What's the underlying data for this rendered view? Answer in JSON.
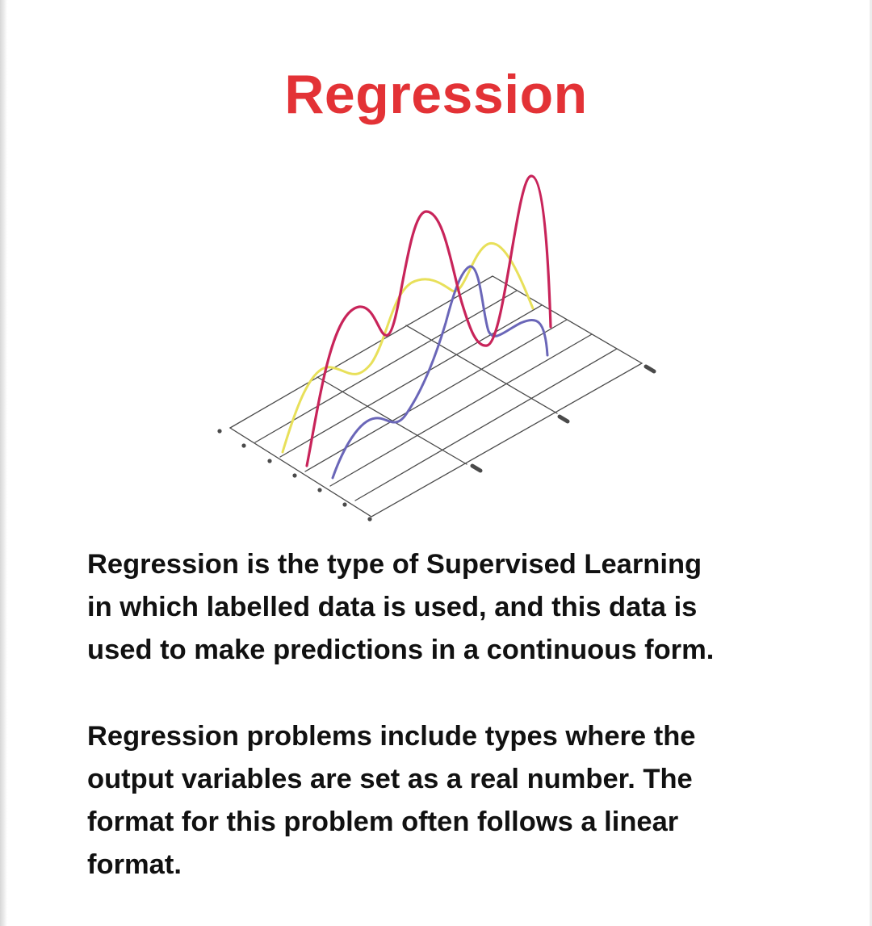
{
  "title": "Regression",
  "paragraphs": [
    {
      "lines": [
        "Regression is the type of Supervised Learning",
        "in which labelled data is used, and this data is",
        "used to make predictions in a continuous form."
      ]
    },
    {
      "lines": [
        "Regression problems include types where the",
        "output variables are set as a real number. The",
        "format for this problem often follows a linear",
        "format."
      ]
    }
  ],
  "illustration": {
    "icon": "regression-curves-illustration",
    "curve_colors": {
      "red": "#c8245a",
      "yellow": "#e8e05a",
      "blue": "#6a66b8"
    },
    "grid_color": "#4a4a4a"
  }
}
